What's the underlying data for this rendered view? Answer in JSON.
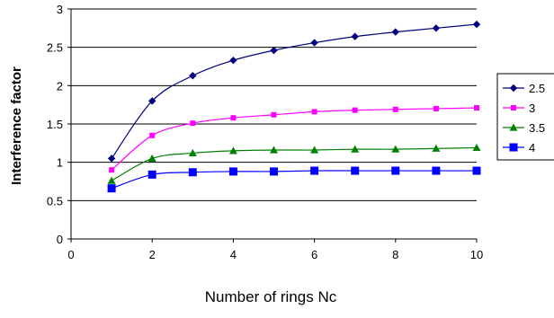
{
  "chart_data": {
    "type": "line",
    "title": "",
    "xlabel": "Number of rings Nc",
    "ylabel": "Interference factor",
    "xlim": [
      0,
      10
    ],
    "ylim": [
      0,
      3
    ],
    "x_ticks": [
      "0",
      "2",
      "4",
      "6",
      "8",
      "10"
    ],
    "y_ticks": [
      "0",
      "0.5",
      "1",
      "1.5",
      "2",
      "2.5",
      "3"
    ],
    "grid": "horizontal",
    "legend_position": "right",
    "x": [
      1,
      2,
      3,
      4,
      5,
      6,
      7,
      8,
      9,
      10
    ],
    "series": [
      {
        "name": "2.5",
        "color": "#000080",
        "marker": "diamond",
        "values": [
          1.05,
          1.8,
          2.13,
          2.33,
          2.46,
          2.56,
          2.64,
          2.7,
          2.75,
          2.8
        ]
      },
      {
        "name": "3",
        "color": "#FF00FF",
        "marker": "square",
        "values": [
          0.9,
          1.35,
          1.51,
          1.58,
          1.62,
          1.66,
          1.68,
          1.69,
          1.7,
          1.71
        ]
      },
      {
        "name": "3.5",
        "color": "#008000",
        "marker": "triangle",
        "values": [
          0.76,
          1.05,
          1.12,
          1.15,
          1.16,
          1.16,
          1.17,
          1.17,
          1.18,
          1.19
        ]
      },
      {
        "name": "4",
        "color": "#0000FF",
        "marker": "square-large",
        "values": [
          0.66,
          0.84,
          0.87,
          0.88,
          0.88,
          0.89,
          0.89,
          0.89,
          0.89,
          0.89
        ]
      }
    ]
  }
}
